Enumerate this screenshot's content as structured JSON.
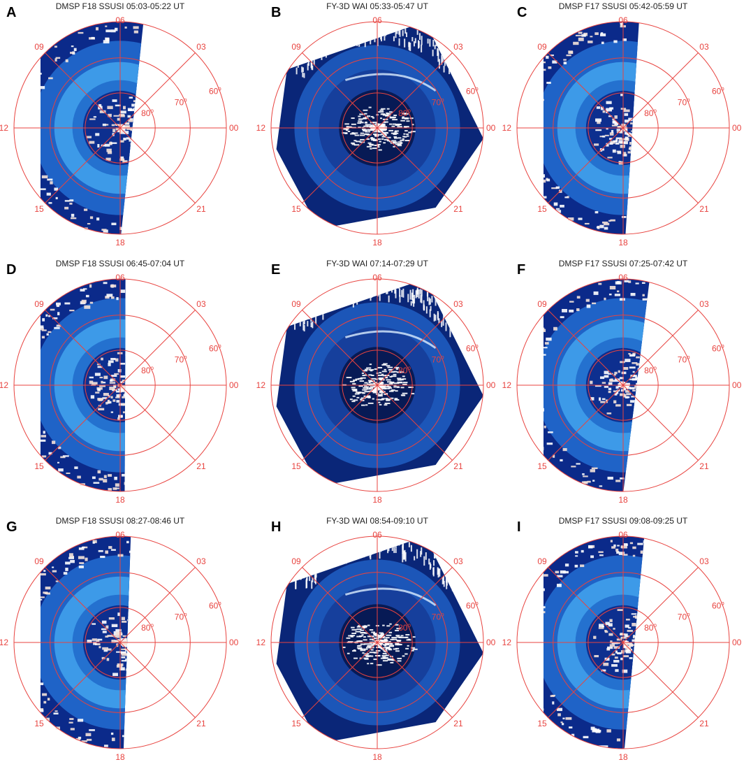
{
  "figure": {
    "grid_color": "#e8433f",
    "mlt_labels": [
      "06",
      "03",
      "00",
      "21",
      "18",
      "15",
      "12",
      "09"
    ],
    "latitude_labels": [
      {
        "value": "80",
        "unit": "o"
      },
      {
        "value": "70",
        "unit": "o"
      },
      {
        "value": "60",
        "unit": "o"
      }
    ],
    "panels": [
      {
        "letter": "A",
        "title": "DMSP F18 SSUSI 05:03-05:22 UT",
        "instrument": "SSUSI"
      },
      {
        "letter": "B",
        "title": "FY-3D WAI 05:33-05:47 UT",
        "instrument": "WAI"
      },
      {
        "letter": "C",
        "title": "DMSP F17 SSUSI 05:42-05:59 UT",
        "instrument": "SSUSI"
      },
      {
        "letter": "D",
        "title": "DMSP F18 SSUSI 06:45-07:04 UT",
        "instrument": "SSUSI"
      },
      {
        "letter": "E",
        "title": "FY-3D WAI 07:14-07:29 UT",
        "instrument": "WAI"
      },
      {
        "letter": "F",
        "title": "DMSP F17 SSUSI 07:25-07:42 UT",
        "instrument": "SSUSI"
      },
      {
        "letter": "G",
        "title": "DMSP F18 SSUSI 08:27-08:46 UT",
        "instrument": "SSUSI"
      },
      {
        "letter": "H",
        "title": "FY-3D WAI 08:54-09:10 UT",
        "instrument": "WAI"
      },
      {
        "letter": "I",
        "title": "DMSP F17 SSUSI 09:08-09:25 UT",
        "instrument": "SSUSI"
      }
    ]
  }
}
